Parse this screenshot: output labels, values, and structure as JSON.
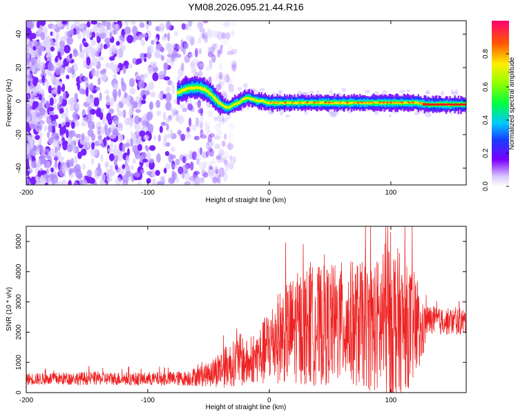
{
  "title": "YM08.2026.095.21.44.R16",
  "chart_data": [
    {
      "type": "heatmap",
      "xlabel": "Height of straight line (km)",
      "ylabel": "Frequency (Hz)",
      "xlim": [
        -200,
        162
      ],
      "ylim": [
        -50,
        48
      ],
      "xticks": [
        -200,
        -100,
        0,
        100
      ],
      "yticks": [
        -40,
        -20,
        0,
        20,
        40
      ],
      "colorbar": {
        "label": "Normalized spectral amplitude",
        "range": [
          0,
          1
        ],
        "ticks": [
          0.0,
          0.2,
          0.4,
          0.6,
          0.8
        ]
      },
      "signal_ridge": {
        "note": "approximate center frequency of the coherent signal (Hz) vs height (km)",
        "x": [
          -76,
          -70,
          -64,
          -58,
          -54,
          -50,
          -46,
          -42,
          -38,
          -34,
          -30,
          -26,
          -22,
          -18,
          -14,
          -10,
          -6,
          -2,
          0,
          10,
          20,
          30,
          40,
          50,
          60,
          70,
          80,
          90,
          100,
          110,
          120,
          130,
          140,
          150,
          162
        ],
        "y": [
          5,
          7,
          8,
          8,
          7,
          5,
          2,
          -1,
          -3,
          -4,
          -2,
          -1,
          1,
          2,
          1,
          0,
          0,
          -1,
          -1,
          -1,
          -1,
          -1,
          -1,
          -1,
          -1,
          -1,
          -1,
          -1,
          -1,
          -1,
          -1,
          -2,
          -2,
          -2,
          -2
        ]
      }
    },
    {
      "type": "line",
      "xlabel": "Height of straight line (km)",
      "ylabel": "SNR (10 * v/v)",
      "xlim": [
        -200,
        162
      ],
      "ylim": [
        0,
        5500
      ],
      "xticks": [
        -200,
        -100,
        0,
        100
      ],
      "yticks": [
        0,
        1000,
        2000,
        3000,
        4000,
        5000
      ],
      "series": [
        {
          "name": "SNR",
          "color": "#ee2222",
          "envelope_note": "approximate mean level and fluctuation amplitude vs height",
          "x": [
            -200,
            -150,
            -100,
            -70,
            -50,
            -40,
            -30,
            -25,
            -20,
            -15,
            -10,
            -5,
            0,
            10,
            20,
            30,
            40,
            50,
            60,
            70,
            80,
            90,
            95,
            100,
            105,
            110,
            120,
            125,
            130,
            140,
            150,
            162
          ],
          "mean": [
            450,
            470,
            450,
            470,
            600,
            800,
            950,
            1100,
            1000,
            900,
            1200,
            1300,
            1600,
            1900,
            2100,
            2200,
            2200,
            2250,
            2300,
            2300,
            2200,
            2200,
            2300,
            2400,
            2300,
            2200,
            2100,
            1900,
            2400,
            2350,
            2350,
            2350
          ],
          "spread": [
            200,
            220,
            220,
            250,
            400,
            650,
            750,
            900,
            850,
            600,
            900,
            1100,
            1300,
            1600,
            1800,
            2000,
            2000,
            2000,
            2050,
            2100,
            2100,
            2300,
            2700,
            3000,
            2600,
            2100,
            1900,
            1100,
            500,
            450,
            450,
            450
          ]
        }
      ]
    }
  ]
}
